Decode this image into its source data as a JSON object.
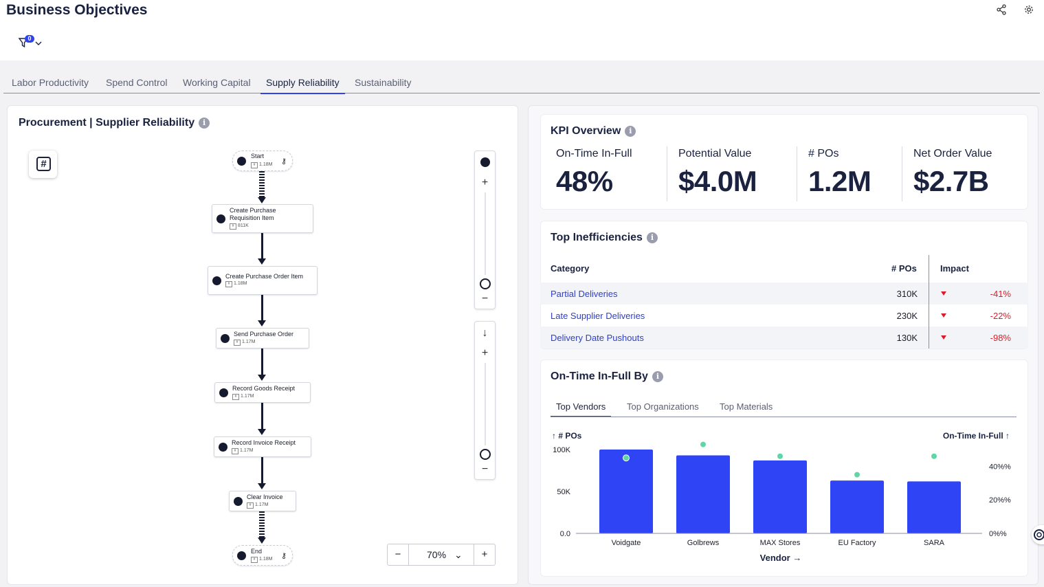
{
  "header": {
    "title": "Business Objectives",
    "filter_count": "0"
  },
  "tabs": [
    {
      "label": "Labor Productivity"
    },
    {
      "label": "Spend Control"
    },
    {
      "label": "Working Capital"
    },
    {
      "label": "Supply Reliability",
      "active": true
    },
    {
      "label": "Sustainability"
    }
  ],
  "process_panel": {
    "title": "Procurement | Supplier Reliability",
    "nodes": [
      {
        "label": "Start",
        "count": "1.18M"
      },
      {
        "label": "Create Purchase Requisition Item",
        "count": "811K"
      },
      {
        "label": "Create Purchase Order Item",
        "count": "1.18M"
      },
      {
        "label": "Send Purchase Order",
        "count": "1.17M"
      },
      {
        "label": "Record Goods Receipt",
        "count": "1.17M"
      },
      {
        "label": "Record Invoice Receipt",
        "count": "1.17M"
      },
      {
        "label": "Clear Invoice",
        "count": "1.17M"
      },
      {
        "label": "End",
        "count": "1.18M"
      }
    ],
    "zoom_level": "70%"
  },
  "kpi": {
    "title": "KPI Overview",
    "items": [
      {
        "label": "On-Time In-Full",
        "value": "48%"
      },
      {
        "label": "Potential Value",
        "value": "$4.0M"
      },
      {
        "label": "# POs",
        "value": "1.2M"
      },
      {
        "label": "Net Order Value",
        "value": "$2.7B"
      }
    ]
  },
  "inefficiencies": {
    "title": "Top Inefficiencies",
    "columns": {
      "category": "Category",
      "pos": "# POs",
      "impact": "Impact"
    },
    "rows": [
      {
        "category": "Partial Deliveries",
        "pos": "310K",
        "impact": "-41%"
      },
      {
        "category": "Late Supplier Deliveries",
        "pos": "230K",
        "impact": "-22%"
      },
      {
        "category": "Delivery Date Pushouts",
        "pos": "130K",
        "impact": "-98%"
      }
    ]
  },
  "otif_by": {
    "title": "On-Time In-Full By",
    "tabs": [
      {
        "label": "Top Vendors",
        "active": true
      },
      {
        "label": "Top Organizations"
      },
      {
        "label": "Top Materials"
      }
    ]
  },
  "colors": {
    "accent": "#2e42f2",
    "bar": "#2f45f5",
    "dot": "#5fd6a6",
    "negative": "#d91e2a",
    "navy": "#1a2240"
  },
  "chart_data": {
    "type": "bar",
    "title": "On-Time In-Full By",
    "xlabel": "Vendor →",
    "ylabel": "↑ # POs",
    "y2label": "On-Time In-Full ↑",
    "categories": [
      "Voidgate",
      "Golbrews",
      "MAX Stores",
      "EU Factory",
      "SARA"
    ],
    "series": [
      {
        "name": "# POs",
        "axis": "left",
        "values": [
          100000,
          93000,
          87000,
          63000,
          62000
        ]
      },
      {
        "name": "On-Time In-Full",
        "axis": "right",
        "values": [
          45,
          53,
          46,
          35,
          46
        ]
      }
    ],
    "ylim": [
      0,
      100000
    ],
    "y_ticks": [
      {
        "value": 0,
        "label": "0.0"
      },
      {
        "value": 50000,
        "label": "50K"
      },
      {
        "value": 100000,
        "label": "100K"
      }
    ],
    "y2lim": [
      0,
      50
    ],
    "y2_ticks": [
      {
        "value": 0,
        "label": "0%%"
      },
      {
        "value": 20,
        "label": "20%%"
      },
      {
        "value": 40,
        "label": "40%%"
      }
    ]
  }
}
